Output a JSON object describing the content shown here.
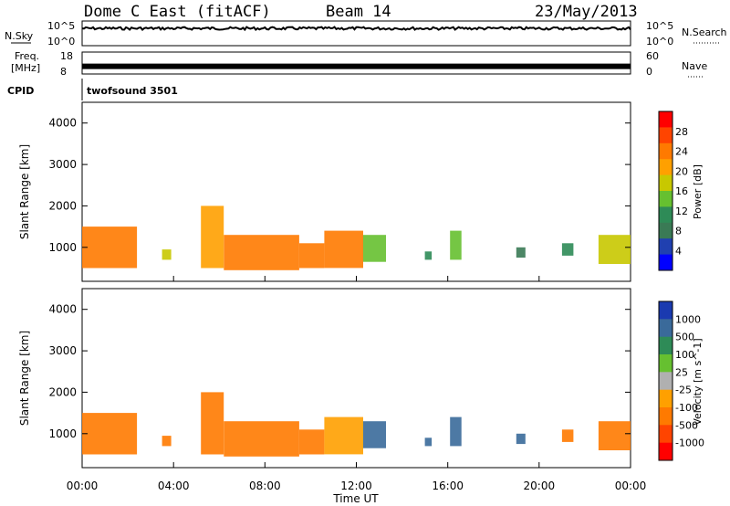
{
  "header": {
    "station": "Dome C East (fitACF)",
    "beam": "Beam 14",
    "date": "23/May/2013"
  },
  "noise_panel": {
    "left_label": "N.Sky",
    "right_label": "N.Search",
    "y_top": "10^5",
    "y_bottom": "10^0",
    "right_top": "10^5",
    "right_bottom": "10^0",
    "trace_level": 0.7
  },
  "freq_panel": {
    "left_label_1": "Freq.",
    "left_label_2": "[MHz]",
    "y_top": "18",
    "y_bottom": "8",
    "right_label": "Nave",
    "right_top": "60",
    "right_bottom": "0",
    "trace_level": 0.35
  },
  "cpid": {
    "label": "CPID",
    "value": "twofsound 3501"
  },
  "x_axis": {
    "title": "Time UT",
    "ticks": [
      "00:00",
      "04:00",
      "08:00",
      "12:00",
      "16:00",
      "20:00",
      "00:00"
    ]
  },
  "power_colorbar": {
    "title": "Power [dB]",
    "levels": [
      "28",
      "24",
      "20",
      "16",
      "12",
      "8",
      "4"
    ],
    "colors": [
      "#ff0000",
      "#ff4400",
      "#ff7a00",
      "#ffa000",
      "#c8c800",
      "#66c030",
      "#2e8b57",
      "#3a7a55",
      "#2040b0",
      "#0000ff"
    ]
  },
  "velocity_colorbar": {
    "title": "Velocity [m s^-1]",
    "levels": [
      "1000",
      "500",
      "100",
      "25",
      "-25",
      "-100",
      "-500",
      "-1000"
    ],
    "colors": [
      "#1a3ab0",
      "#3a6a9a",
      "#2e8b57",
      "#66c030",
      "#b0b0b0",
      "#ffa000",
      "#ff7a00",
      "#ff4400",
      "#ff0000"
    ]
  },
  "chart_data": [
    {
      "type": "heatmap",
      "title": "",
      "ylabel": "Slant Range [km]",
      "xlabel": "",
      "xlim": [
        0,
        24
      ],
      "ylim": [
        180,
        4500
      ],
      "yticks": [
        "1000",
        "2000",
        "3000",
        "4000"
      ],
      "legend": "Power [dB]",
      "series": [
        {
          "x": [
            0.0,
            2.4
          ],
          "y": [
            500,
            1500
          ],
          "value": 22
        },
        {
          "x": [
            3.5,
            3.9
          ],
          "y": [
            700,
            950
          ],
          "value": 18
        },
        {
          "x": [
            5.2,
            6.2
          ],
          "y": [
            500,
            2000
          ],
          "value": 20
        },
        {
          "x": [
            6.2,
            9.5
          ],
          "y": [
            450,
            1300
          ],
          "value": 24
        },
        {
          "x": [
            9.5,
            10.6
          ],
          "y": [
            500,
            1100
          ],
          "value": 22
        },
        {
          "x": [
            10.6,
            12.3
          ],
          "y": [
            500,
            1400
          ],
          "value": 24
        },
        {
          "x": [
            12.3,
            13.3
          ],
          "y": [
            650,
            1300
          ],
          "value": 14
        },
        {
          "x": [
            15.0,
            15.3
          ],
          "y": [
            700,
            900
          ],
          "value": 10
        },
        {
          "x": [
            16.1,
            16.6
          ],
          "y": [
            700,
            1400
          ],
          "value": 14
        },
        {
          "x": [
            19.0,
            19.4
          ],
          "y": [
            750,
            1000
          ],
          "value": 8
        },
        {
          "x": [
            21.0,
            21.5
          ],
          "y": [
            800,
            1100
          ],
          "value": 10
        },
        {
          "x": [
            22.6,
            24.0
          ],
          "y": [
            600,
            1300
          ],
          "value": 16
        }
      ]
    },
    {
      "type": "heatmap",
      "title": "",
      "ylabel": "Slant Range [km]",
      "xlabel": "Time UT",
      "xlim": [
        0,
        24
      ],
      "ylim": [
        180,
        4500
      ],
      "yticks": [
        "1000",
        "2000",
        "3000",
        "4000"
      ],
      "legend": "Velocity [m s^-1]",
      "series": [
        {
          "x": [
            0.0,
            2.4
          ],
          "y": [
            500,
            1500
          ],
          "value": -300
        },
        {
          "x": [
            3.5,
            3.9
          ],
          "y": [
            700,
            950
          ],
          "value": -300
        },
        {
          "x": [
            5.2,
            6.2
          ],
          "y": [
            500,
            2000
          ],
          "value": -400
        },
        {
          "x": [
            6.2,
            9.5
          ],
          "y": [
            450,
            1300
          ],
          "value": -300
        },
        {
          "x": [
            9.5,
            10.6
          ],
          "y": [
            500,
            1100
          ],
          "value": -200
        },
        {
          "x": [
            10.6,
            12.3
          ],
          "y": [
            500,
            1400
          ],
          "value": -60
        },
        {
          "x": [
            12.3,
            13.3
          ],
          "y": [
            650,
            1300
          ],
          "value": 150
        },
        {
          "x": [
            15.0,
            15.3
          ],
          "y": [
            700,
            900
          ],
          "value": 150
        },
        {
          "x": [
            16.1,
            16.6
          ],
          "y": [
            700,
            1400
          ],
          "value": 200
        },
        {
          "x": [
            19.0,
            19.4
          ],
          "y": [
            750,
            1000
          ],
          "value": 200
        },
        {
          "x": [
            21.0,
            21.5
          ],
          "y": [
            800,
            1100
          ],
          "value": -300
        },
        {
          "x": [
            22.6,
            24.0
          ],
          "y": [
            600,
            1300
          ],
          "value": -300
        }
      ]
    }
  ]
}
